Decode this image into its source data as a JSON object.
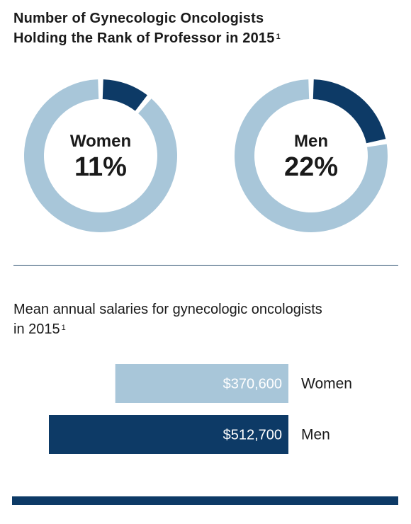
{
  "header": {
    "title_line1": "Number of Gynecologic Oncologists",
    "title_line2": "Holding the Rank of Professor in 2015",
    "title_footnote": "1"
  },
  "subtitle": {
    "line1": "Mean annual salaries for gynecologic oncologists",
    "line2": "in 2015",
    "footnote": "1"
  },
  "colors": {
    "dark": "#0d3a66",
    "light": "#a8c6d9"
  },
  "chart_data": [
    {
      "type": "pie",
      "title": "Number of Gynecologic Oncologists Holding the Rank of Professor in 2015",
      "slices": [
        {
          "label": "Women",
          "percent_label": "11%",
          "value": 11
        },
        {
          "label": "Men",
          "percent_label": "22%",
          "value": 22
        }
      ]
    },
    {
      "type": "bar",
      "title": "Mean annual salaries for gynecologic oncologists in 2015",
      "categories": [
        "Women",
        "Men"
      ],
      "values": [
        370600,
        512700
      ],
      "value_labels": [
        "$370,600",
        "$512,700"
      ]
    }
  ]
}
